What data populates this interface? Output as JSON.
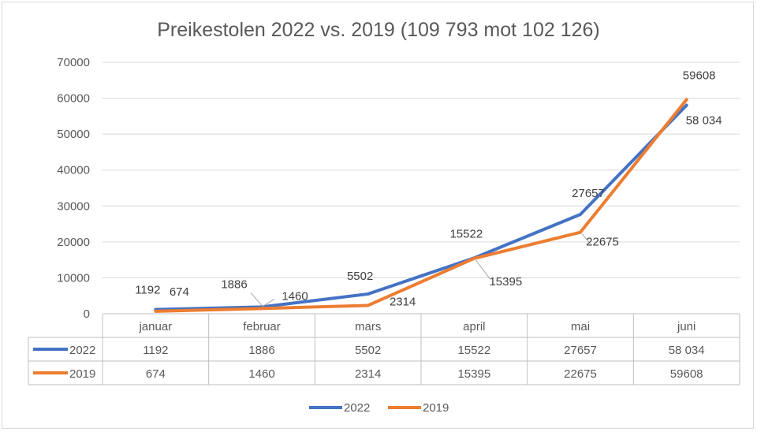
{
  "chart_data": {
    "type": "line",
    "title": "Preikestolen 2022 vs. 2019 (109 793 mot 102 126)",
    "categories": [
      "januar",
      "februar",
      "mars",
      "april",
      "mai",
      "juni"
    ],
    "ylim": [
      0,
      70000
    ],
    "yticks": [
      "0",
      "10000",
      "20000",
      "30000",
      "40000",
      "50000",
      "60000",
      "70000"
    ],
    "grid": true,
    "legend": "bottom",
    "series": [
      {
        "name": "2022",
        "color": "#4472c4",
        "values": [
          1192,
          1886,
          5502,
          15522,
          27657,
          58034
        ],
        "labels": [
          "1192",
          "1886",
          "5502",
          "15522",
          "27657",
          "58 034"
        ]
      },
      {
        "name": "2019",
        "color": "#ed7d31",
        "values": [
          674,
          1460,
          2314,
          15395,
          22675,
          59608
        ],
        "labels": [
          "674",
          "1460",
          "2314",
          "15395",
          "22675",
          "59608"
        ]
      }
    ]
  }
}
